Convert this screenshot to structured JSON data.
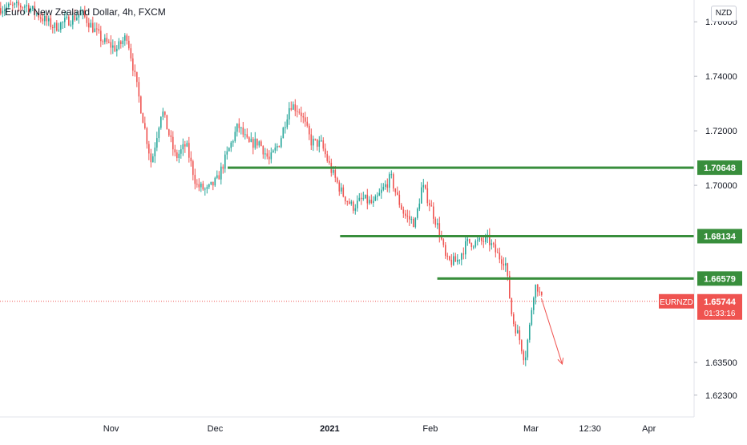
{
  "header": {
    "symbol_name": "Euro / New Zealand Dollar",
    "interval": "4h",
    "exchange": "FXCM"
  },
  "currency_badge": "NZD",
  "colors": {
    "up": "#26a69a",
    "down": "#ef5350",
    "level_line": "#388e3c",
    "price_line": "#ef5350",
    "axis_text": "#131722",
    "label_text": "#ffffff"
  },
  "chart_data": {
    "type": "candlestick",
    "title": "",
    "xlabel": "",
    "ylabel": "",
    "ylim": [
      1.615,
      1.768
    ],
    "y_ticks": [
      {
        "value": 1.76,
        "label": "1.76000"
      },
      {
        "value": 1.74,
        "label": "1.74000"
      },
      {
        "value": 1.72,
        "label": "1.72000"
      },
      {
        "value": 1.7,
        "label": "1.70000"
      },
      {
        "value": 1.635,
        "label": "1.63500"
      },
      {
        "value": 1.623,
        "label": "1.62300"
      }
    ],
    "x_ticks": [
      {
        "t": 0.16,
        "label": "Nov",
        "bold": false
      },
      {
        "t": 0.31,
        "label": "Dec",
        "bold": false
      },
      {
        "t": 0.475,
        "label": "2021",
        "bold": true
      },
      {
        "t": 0.62,
        "label": "Feb",
        "bold": false
      },
      {
        "t": 0.765,
        "label": "Mar",
        "bold": false
      },
      {
        "t": 0.85,
        "label": "12:30",
        "bold": false
      },
      {
        "t": 0.935,
        "label": "Apr",
        "bold": false
      }
    ],
    "path_points": [
      [
        0.0,
        1.765
      ],
      [
        0.04,
        1.766
      ],
      [
        0.08,
        1.758
      ],
      [
        0.12,
        1.763
      ],
      [
        0.15,
        1.753
      ],
      [
        0.17,
        1.75
      ],
      [
        0.185,
        1.755
      ],
      [
        0.2,
        1.735
      ],
      [
        0.22,
        1.708
      ],
      [
        0.235,
        1.728
      ],
      [
        0.255,
        1.71
      ],
      [
        0.27,
        1.715
      ],
      [
        0.285,
        1.7
      ],
      [
        0.3,
        1.698
      ],
      [
        0.315,
        1.702
      ],
      [
        0.33,
        1.712
      ],
      [
        0.345,
        1.722
      ],
      [
        0.36,
        1.715
      ],
      [
        0.375,
        1.716
      ],
      [
        0.39,
        1.709
      ],
      [
        0.405,
        1.716
      ],
      [
        0.42,
        1.73
      ],
      [
        0.435,
        1.727
      ],
      [
        0.45,
        1.716
      ],
      [
        0.465,
        1.715
      ],
      [
        0.48,
        1.705
      ],
      [
        0.495,
        1.697
      ],
      [
        0.51,
        1.692
      ],
      [
        0.525,
        1.695
      ],
      [
        0.54,
        1.693
      ],
      [
        0.555,
        1.699
      ],
      [
        0.565,
        1.703
      ],
      [
        0.575,
        1.695
      ],
      [
        0.585,
        1.689
      ],
      [
        0.6,
        1.686
      ],
      [
        0.61,
        1.7
      ],
      [
        0.62,
        1.694
      ],
      [
        0.635,
        1.683
      ],
      [
        0.645,
        1.672
      ],
      [
        0.66,
        1.672
      ],
      [
        0.675,
        1.679
      ],
      [
        0.69,
        1.679
      ],
      [
        0.705,
        1.68
      ],
      [
        0.72,
        1.674
      ],
      [
        0.73,
        1.672
      ],
      [
        0.74,
        1.651
      ],
      [
        0.75,
        1.644
      ],
      [
        0.758,
        1.636
      ],
      [
        0.765,
        1.648
      ],
      [
        0.77,
        1.66
      ],
      [
        0.775,
        1.664
      ],
      [
        0.782,
        1.658
      ]
    ],
    "levels": [
      {
        "value": 1.70648,
        "label": "1.70648",
        "t_start": 0.328
      },
      {
        "value": 1.68134,
        "label": "1.68134",
        "t_start": 0.49
      },
      {
        "value": 1.66579,
        "label": "1.66579",
        "t_start": 0.63
      }
    ],
    "last_price": {
      "symbol": "EURNZD",
      "value": 1.65744,
      "label": "1.65744",
      "countdown": "01:33:16"
    },
    "arrow": {
      "t_from": 0.78,
      "y_from": 1.6585,
      "t_to": 0.81,
      "y_to": 1.6344
    }
  }
}
